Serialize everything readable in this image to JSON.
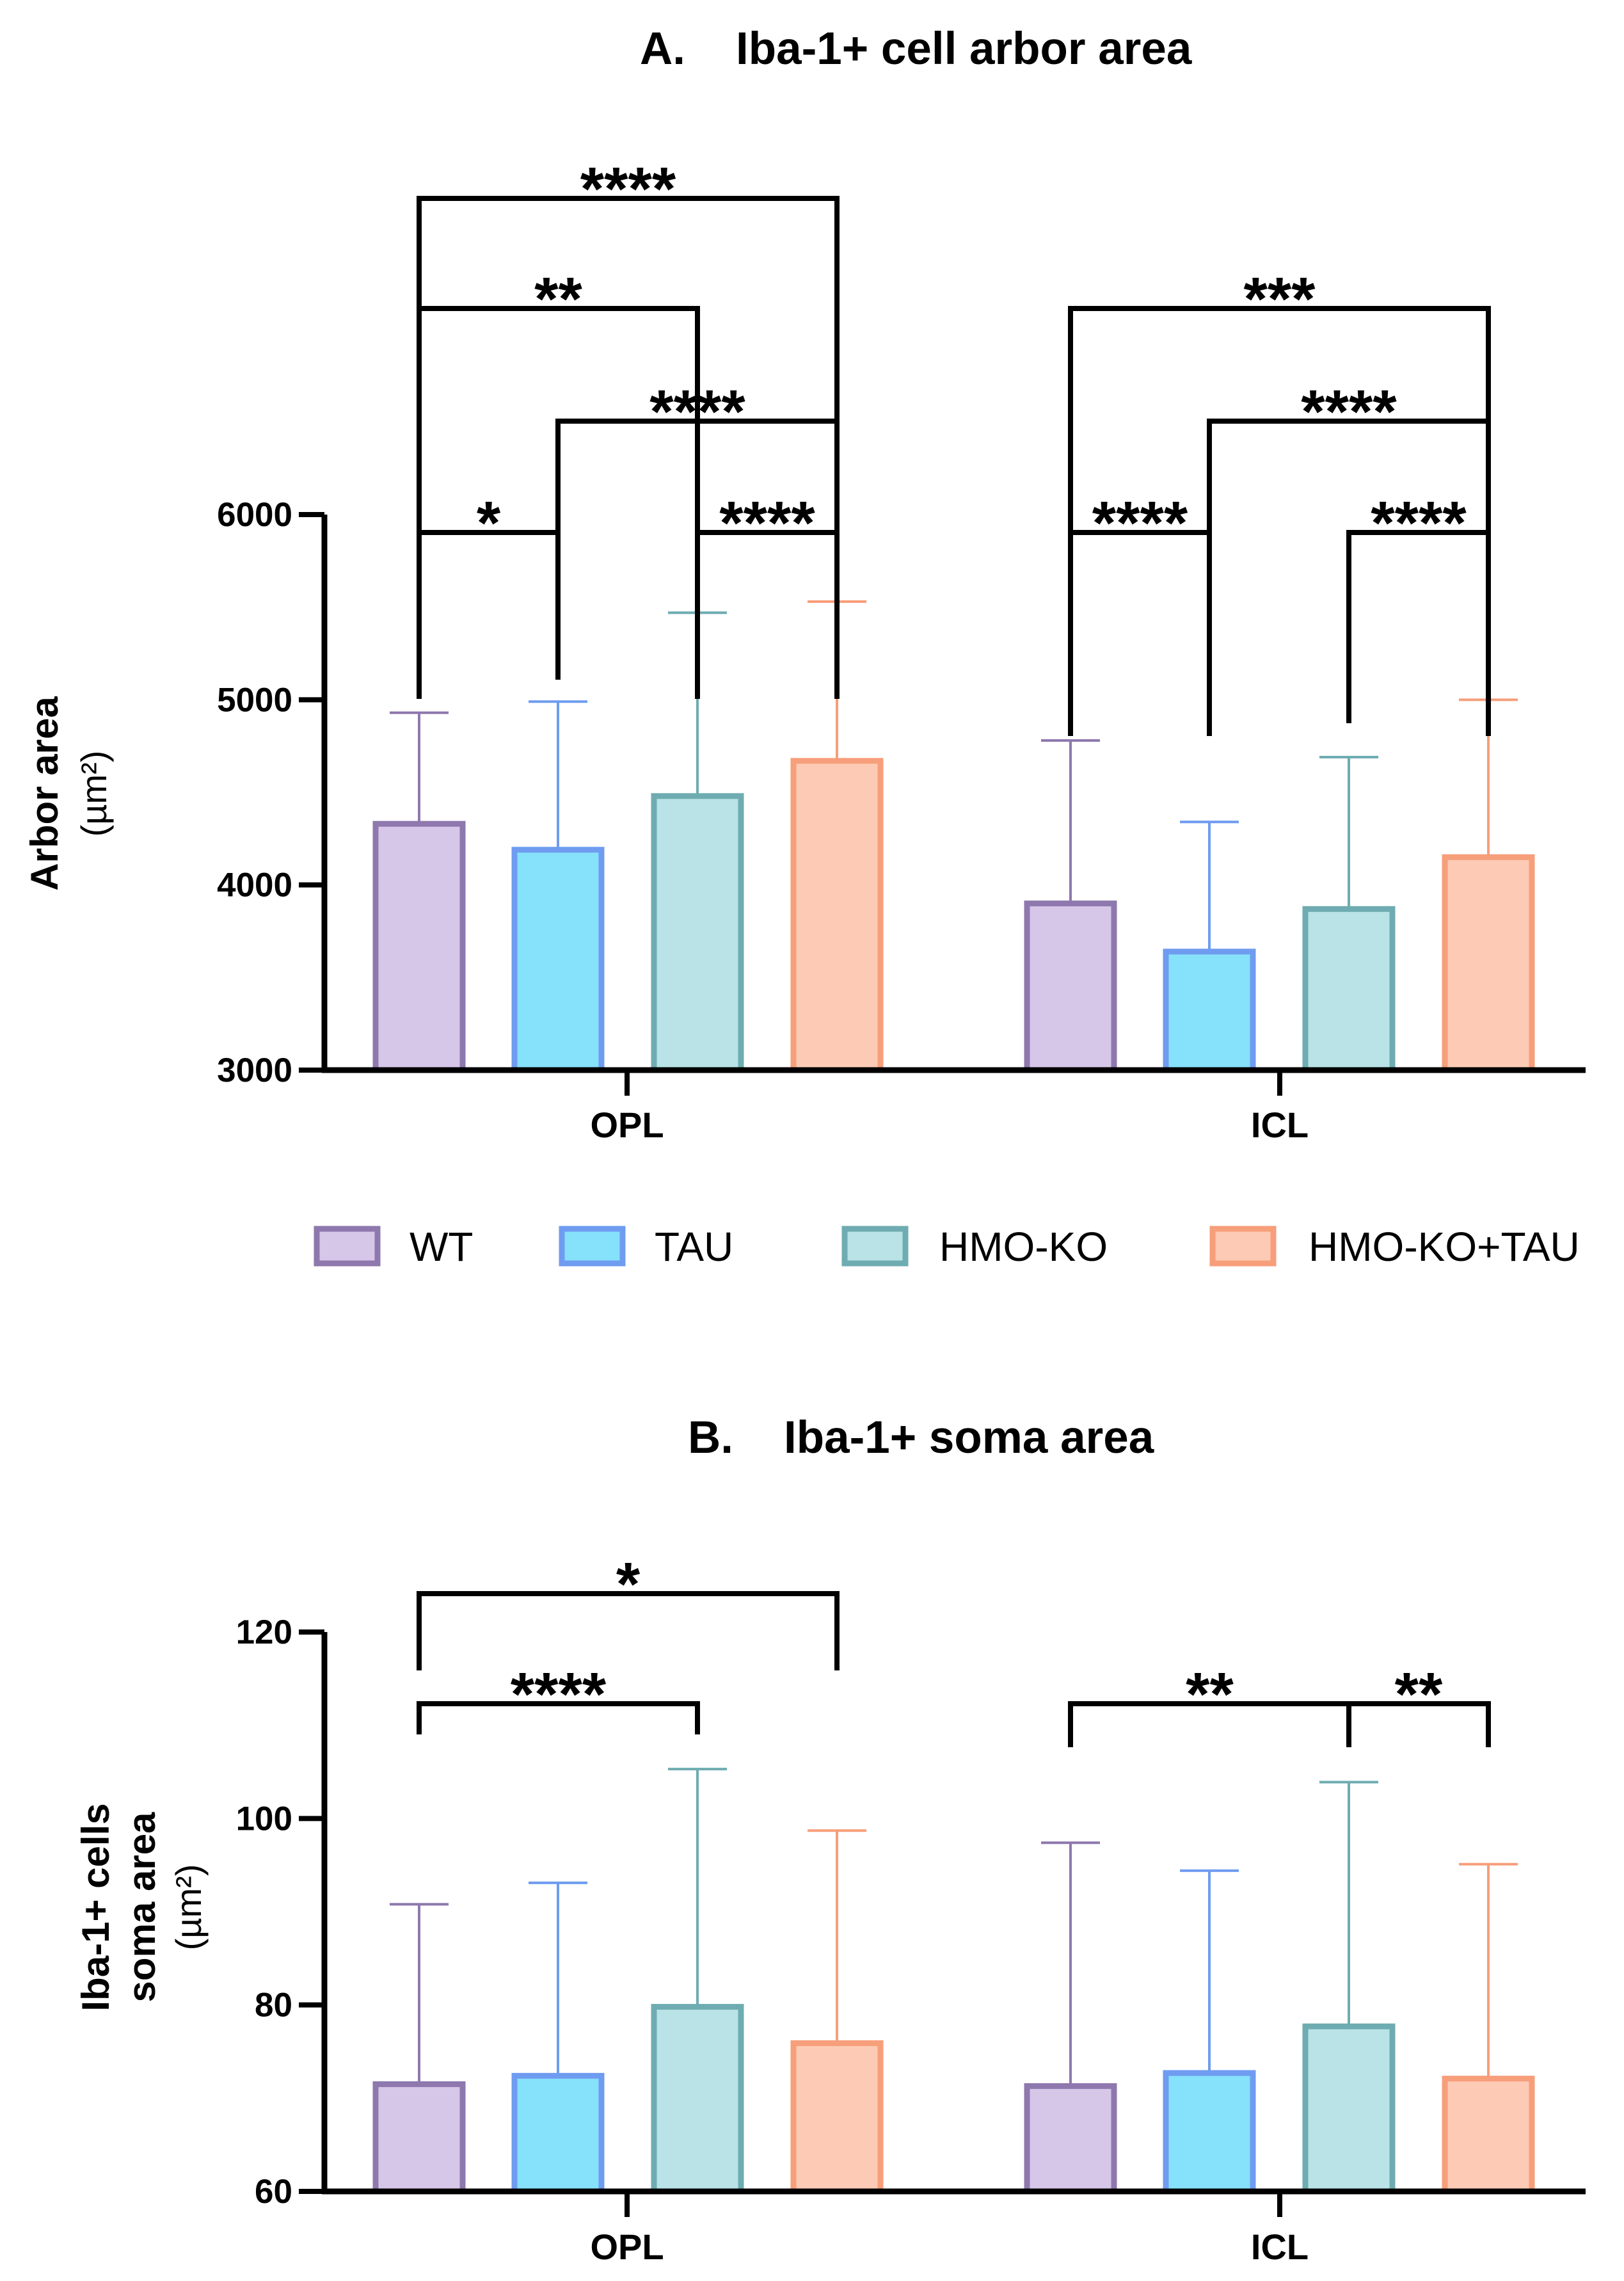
{
  "colors": {
    "WT": {
      "fill": "#d6c6e8",
      "stroke": "#8e78ad"
    },
    "TAU": {
      "fill": "#86e1fb",
      "stroke": "#6f9cf0"
    },
    "HMO-KO": {
      "fill": "#b9e3e6",
      "stroke": "#6eacb1"
    },
    "HMO-KO+TAU": {
      "fill": "#fdcbb5",
      "stroke": "#f79e7a"
    },
    "axis": "#000000"
  },
  "legend": {
    "items": [
      {
        "key": "WT",
        "label": "WT"
      },
      {
        "key": "TAU",
        "label": "TAU"
      },
      {
        "key": "HMO-KO",
        "label": "HMO-KO"
      },
      {
        "key": "HMO-KO+TAU",
        "label": "HMO-KO+TAU"
      }
    ]
  },
  "chart_data": [
    {
      "type": "bar",
      "title_letter": "A.",
      "title": "Iba-1+ cell arbor area",
      "ylabel": "Arbor area",
      "ylabel_unit": "(µm²)",
      "ylabel_lines": [
        "Arbor area"
      ],
      "ylim": [
        3000,
        6000
      ],
      "yticks": [
        3000,
        4000,
        5000,
        6000
      ],
      "categories": [
        "OPL",
        "ICL"
      ],
      "series": [
        {
          "name": "WT",
          "values": [
            4330,
            3900
          ],
          "error_upper": [
            4930,
            4780
          ]
        },
        {
          "name": "TAU",
          "values": [
            4190,
            3640
          ],
          "error_upper": [
            4990,
            4340
          ]
        },
        {
          "name": "HMO-KO",
          "values": [
            4480,
            3870
          ],
          "error_upper": [
            5470,
            4690
          ]
        },
        {
          "name": "HMO-KO+TAU",
          "values": [
            4670,
            4150
          ],
          "error_upper": [
            5530,
            5000
          ]
        }
      ],
      "significance": [
        {
          "category": 0,
          "from": 0,
          "to": 3,
          "label": "****"
        },
        {
          "category": 0,
          "from": 0,
          "to": 2,
          "label": "**"
        },
        {
          "category": 0,
          "from": 1,
          "to": 3,
          "label": "****"
        },
        {
          "category": 0,
          "from": 0,
          "to": 1,
          "label": "*"
        },
        {
          "category": 0,
          "from": 2,
          "to": 3,
          "label": "****"
        },
        {
          "category": 1,
          "from": 0,
          "to": 3,
          "label": "***"
        },
        {
          "category": 1,
          "from": 1,
          "to": 3,
          "label": "****"
        },
        {
          "category": 1,
          "from": 0,
          "to": 1,
          "label": "****"
        },
        {
          "category": 1,
          "from": 2,
          "to": 3,
          "label": "****"
        }
      ]
    },
    {
      "type": "bar",
      "title_letter": "B.",
      "title": "Iba-1+ soma area",
      "ylabel": "Iba-1+ cells soma area",
      "ylabel_unit": "(µm²)",
      "ylabel_lines": [
        "Iba-1+ cells",
        "soma area"
      ],
      "ylim": [
        60,
        120
      ],
      "yticks": [
        60,
        80,
        100,
        120
      ],
      "categories": [
        "OPL",
        "ICL"
      ],
      "series": [
        {
          "name": "WT",
          "values": [
            71.5,
            71.3
          ],
          "error_upper": [
            90.8,
            97.4
          ]
        },
        {
          "name": "TAU",
          "values": [
            72.4,
            72.7
          ],
          "error_upper": [
            93.1,
            94.4
          ]
        },
        {
          "name": "HMO-KO",
          "values": [
            79.8,
            77.7
          ],
          "error_upper": [
            105.3,
            103.9
          ]
        },
        {
          "name": "HMO-KO+TAU",
          "values": [
            75.9,
            72.1
          ],
          "error_upper": [
            98.7,
            95.1
          ]
        }
      ],
      "significance": [
        {
          "category": 0,
          "from": 0,
          "to": 3,
          "label": "*"
        },
        {
          "category": 0,
          "from": 0,
          "to": 2,
          "label": "****"
        },
        {
          "category": 1,
          "from": 0,
          "to": 2,
          "label": "**"
        },
        {
          "category": 1,
          "from": 2,
          "to": 3,
          "label": "**"
        }
      ]
    }
  ]
}
